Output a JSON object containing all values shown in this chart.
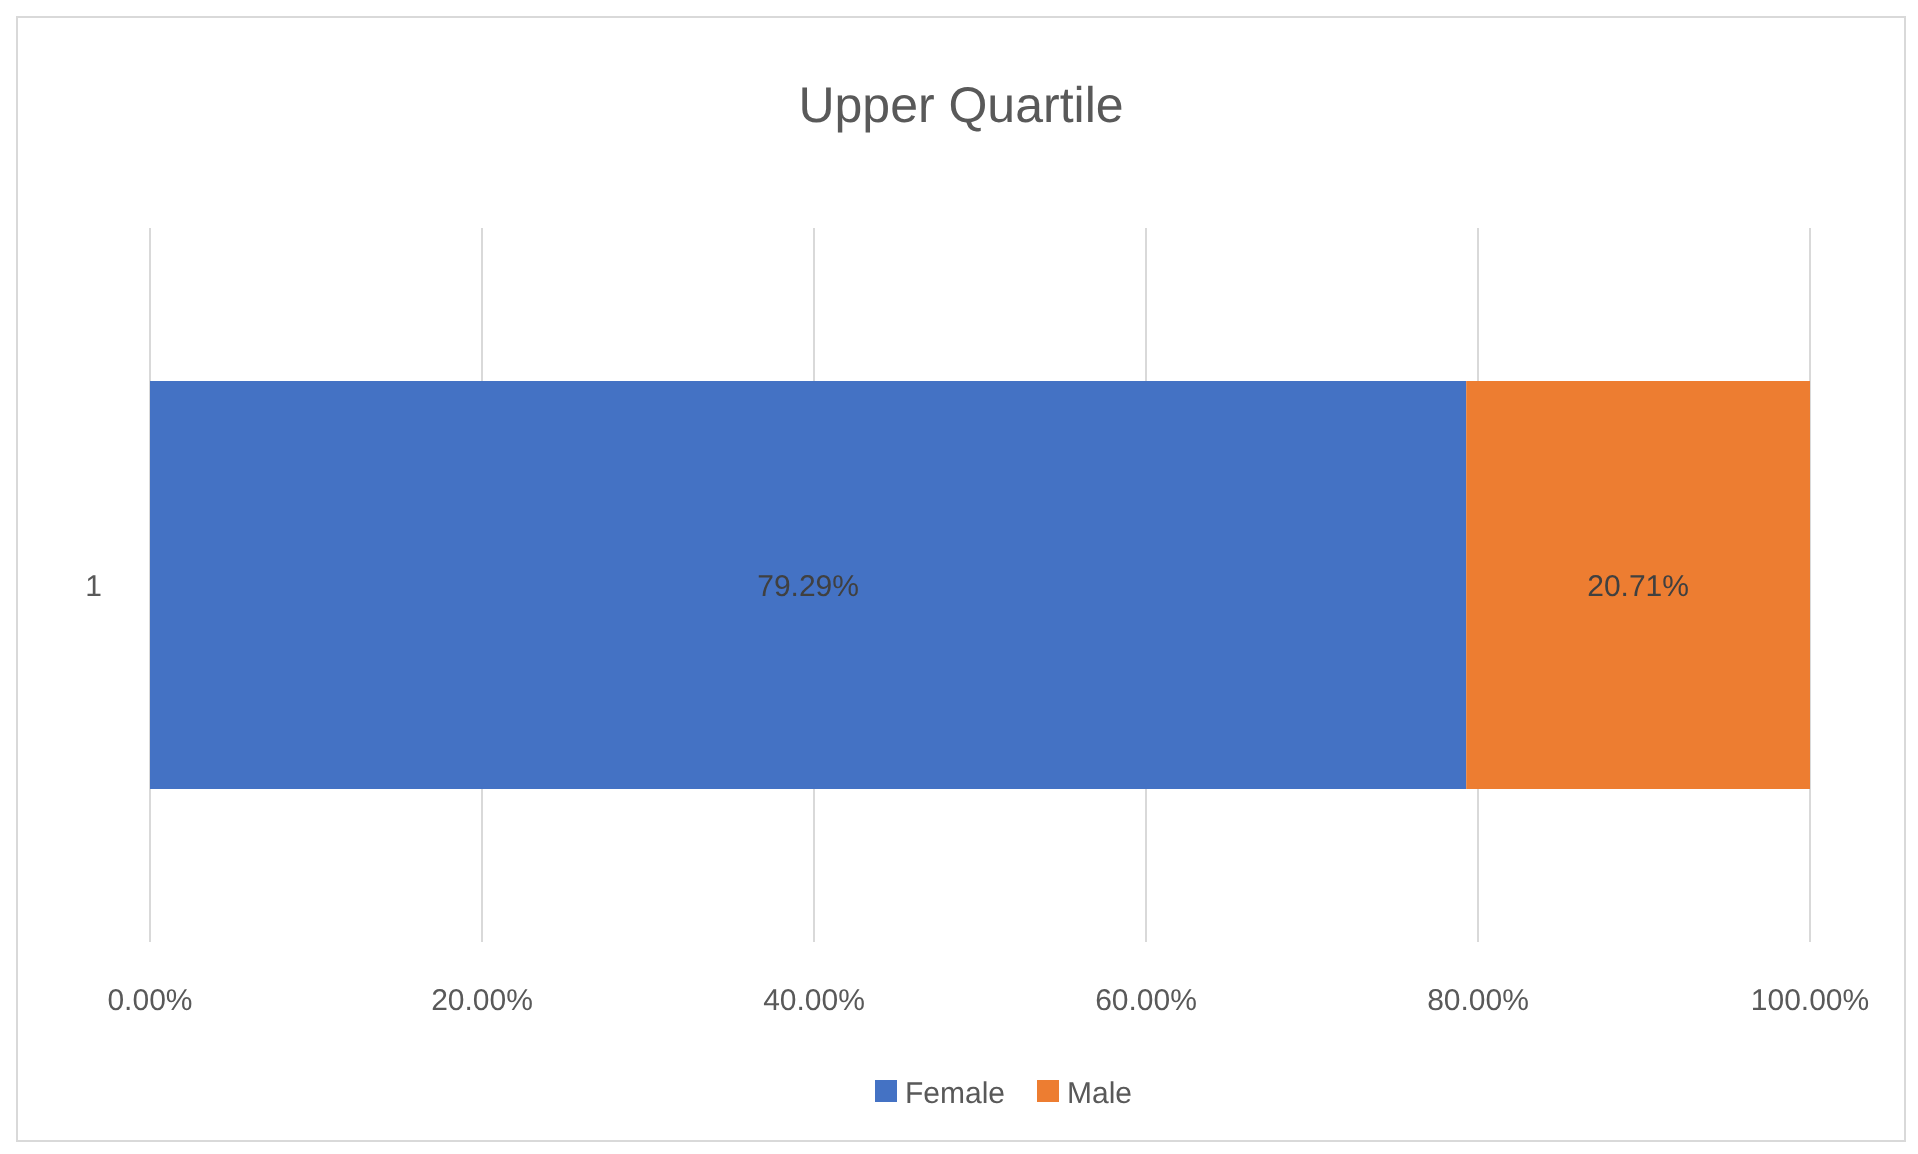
{
  "chart_data": {
    "type": "bar",
    "title": "Upper Quartile",
    "orientation": "horizontal",
    "stacked": true,
    "categories": [
      "1"
    ],
    "series": [
      {
        "name": "Female",
        "color": "#4472c4",
        "values": [
          79.29
        ],
        "value_labels": [
          "79.29%"
        ]
      },
      {
        "name": "Male",
        "color": "#ed7d31",
        "values": [
          20.71
        ],
        "value_labels": [
          "20.71%"
        ]
      }
    ],
    "xlim": [
      0,
      100
    ],
    "xticks": [
      {
        "value": 0,
        "label": "0.00%"
      },
      {
        "value": 20,
        "label": "20.00%"
      },
      {
        "value": 40,
        "label": "40.00%"
      },
      {
        "value": 60,
        "label": "60.00%"
      },
      {
        "value": 80,
        "label": "80.00%"
      },
      {
        "value": 100,
        "label": "100.00%"
      }
    ],
    "grid": "x",
    "legend": "bottom"
  }
}
